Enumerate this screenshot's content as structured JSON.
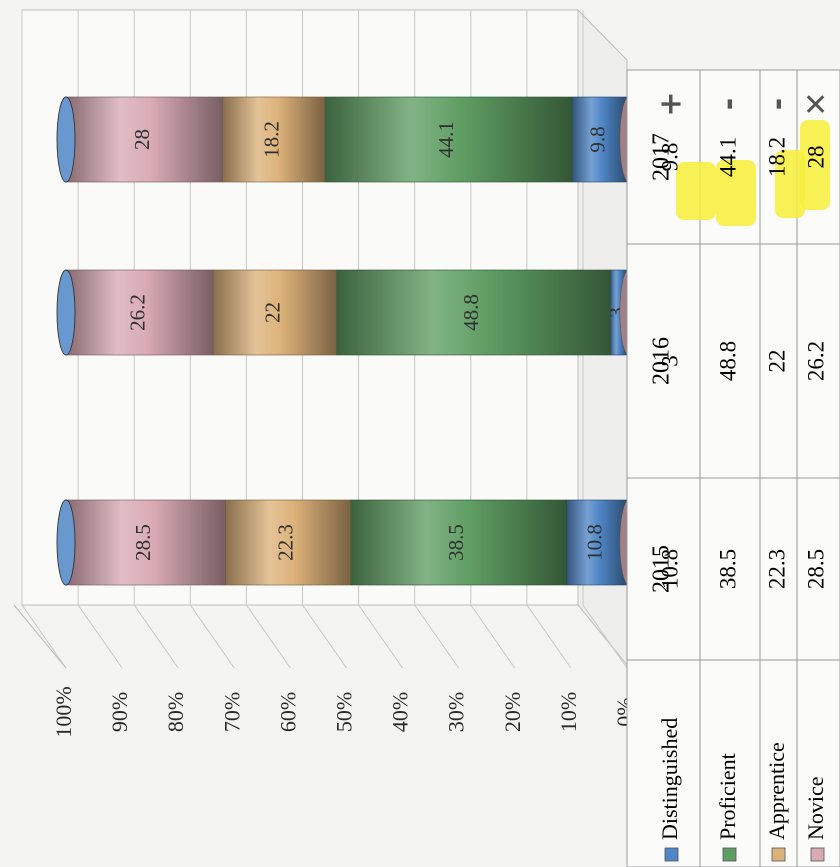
{
  "chart_data": {
    "type": "bar",
    "stacked": "percent",
    "orientation": "horizontal",
    "categories": [
      "2015",
      "2016",
      "2017"
    ],
    "series": [
      {
        "name": "Distinguished",
        "values": [
          10.8,
          3,
          9.8
        ],
        "color": "#4f86c6"
      },
      {
        "name": "Proficient",
        "values": [
          38.5,
          48.8,
          44.1
        ],
        "color": "#5f9e63"
      },
      {
        "name": "Apprentice",
        "values": [
          22.3,
          22,
          18.2
        ],
        "color": "#ddb27a"
      },
      {
        "name": "Novice",
        "values": [
          28.5,
          26.2,
          28
        ],
        "color": "#d9aab4"
      }
    ],
    "axis_ticks": [
      "0%",
      "10%",
      "20%",
      "30%",
      "40%",
      "50%",
      "60%",
      "70%",
      "80%",
      "90%",
      "100%"
    ],
    "xlim": [
      0,
      100
    ],
    "grid": true,
    "data_table": true,
    "annotations": {
      "highlighted_values_2017": [
        9.8,
        44.1,
        18.2,
        28
      ],
      "handwritten_marks_2017": [
        "+",
        "-",
        "-",
        "✕"
      ],
      "highlight_color": "#f7ef3a"
    }
  }
}
